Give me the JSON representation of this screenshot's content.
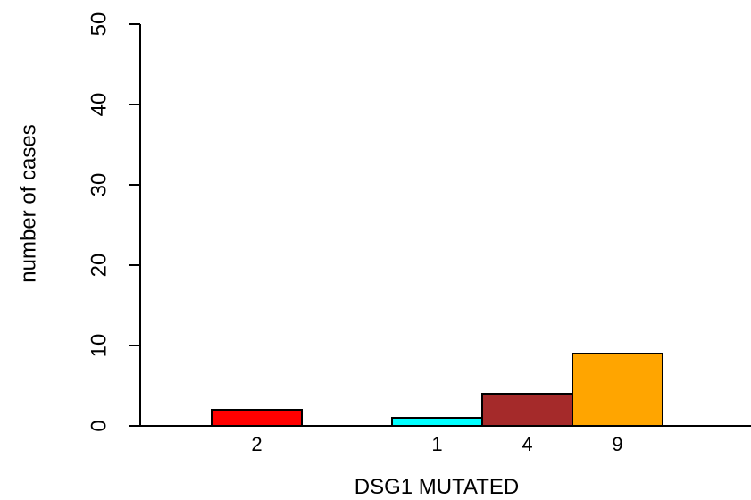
{
  "chart_data": {
    "type": "bar",
    "title": "",
    "xlabel": "DSG1 MUTATED",
    "ylabel": "number of cases",
    "ylim": [
      0,
      50
    ],
    "yticks": [
      "0",
      "10",
      "20",
      "30",
      "40",
      "50"
    ],
    "grid": false,
    "legend": "none",
    "bars": [
      {
        "label": "2",
        "value": 2,
        "color": "#ff0000"
      },
      {
        "label": "",
        "value": 0,
        "color": "#ffffff"
      },
      {
        "label": "1",
        "value": 1,
        "color": "#00ffff"
      },
      {
        "label": "4",
        "value": 4,
        "color": "#a52a2a"
      },
      {
        "label": "9",
        "value": 9,
        "color": "#ffa500"
      }
    ]
  }
}
